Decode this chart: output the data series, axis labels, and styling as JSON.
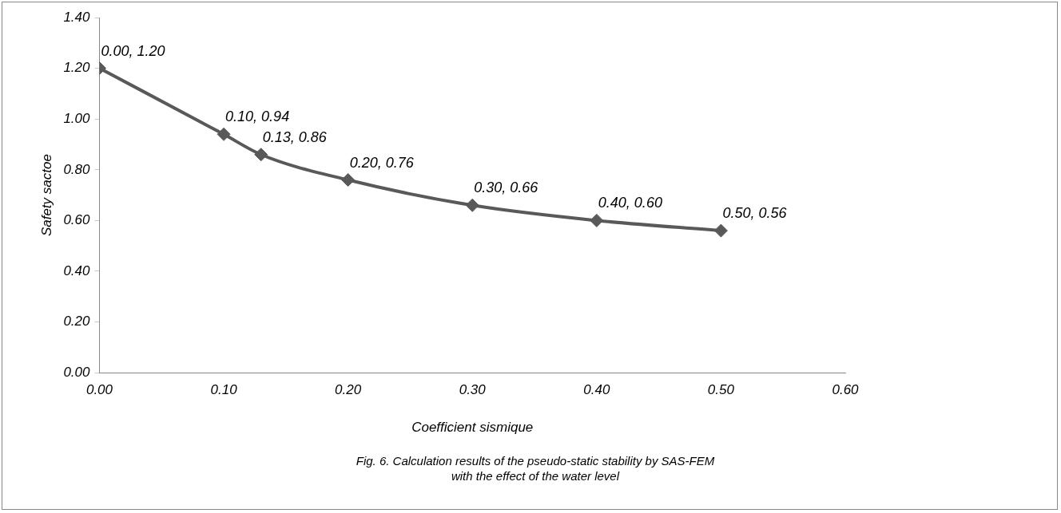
{
  "chart_data": {
    "type": "line",
    "xlabel": "Coefficient sismique",
    "ylabel": "Safety sactoe",
    "x": [
      0.0,
      0.1,
      0.13,
      0.2,
      0.3,
      0.4,
      0.5
    ],
    "series": [
      {
        "color": "#595959",
        "values": [
          1.2,
          0.94,
          0.86,
          0.76,
          0.66,
          0.6,
          0.56
        ],
        "value_labels": [
          "0.00, 1.20",
          "0.10, 0.94",
          "0.13, 0.86",
          "0.20, 0.76",
          "0.30, 0.66",
          "0.40, 0.60",
          "0.50, 0.56"
        ]
      }
    ],
    "xlim": [
      0,
      0.6
    ],
    "xticks": [
      {
        "value": 0,
        "label": "0.00"
      },
      {
        "value": 0.1,
        "label": "0.10"
      },
      {
        "value": 0.2,
        "label": "0.20"
      },
      {
        "value": 0.3,
        "label": "0.30"
      },
      {
        "value": 0.4,
        "label": "0.40"
      },
      {
        "value": 0.5,
        "label": "0.50"
      },
      {
        "value": 0.6,
        "label": "0.60"
      }
    ],
    "ylim": [
      0,
      1.4
    ],
    "yticks": [
      {
        "value": 0,
        "label": "0.00"
      },
      {
        "value": 0.2,
        "label": "0.20"
      },
      {
        "value": 0.4,
        "label": "0.40"
      },
      {
        "value": 0.6,
        "label": "0.60"
      },
      {
        "value": 0.8,
        "label": "0.80"
      },
      {
        "value": 1.0,
        "label": "1.00"
      },
      {
        "value": 1.2,
        "label": "1.20"
      },
      {
        "value": 1.4,
        "label": "1.40"
      }
    ],
    "marker": "diamond",
    "line_style": "solid",
    "grid": false,
    "legend": false,
    "annotations": [
      "Fig. 6. Calculation results of the pseudo-static stability by SAS-FEM with the effect of the water level"
    ]
  }
}
